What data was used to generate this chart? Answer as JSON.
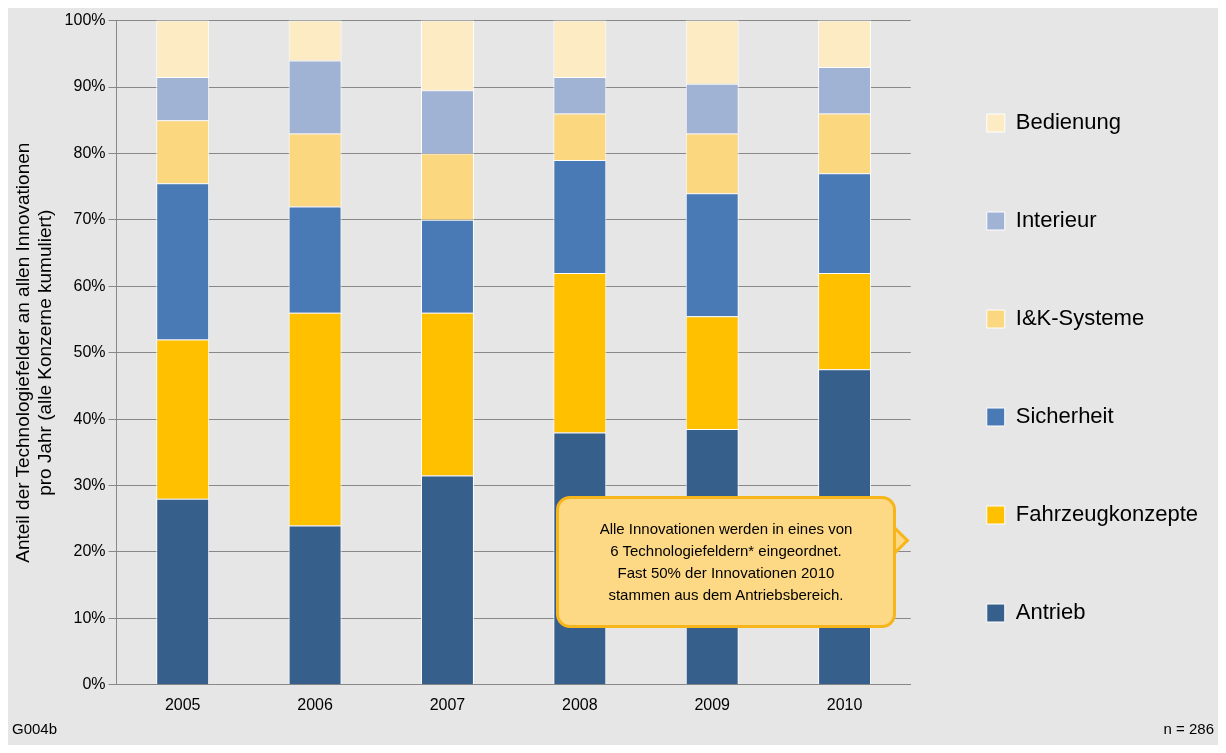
{
  "chart_data": {
    "type": "bar",
    "stacked": true,
    "categories": [
      "2005",
      "2006",
      "2007",
      "2008",
      "2009",
      "2010"
    ],
    "ylabel": "Anteil der Technologiefelder an allen Innovationen\npro Jahr (alle Konzerne kumuliert)",
    "ylim": [
      0,
      100
    ],
    "yticks": [
      {
        "value": 0,
        "label": "0%"
      },
      {
        "value": 10,
        "label": "10%"
      },
      {
        "value": 20,
        "label": "20%"
      },
      {
        "value": 30,
        "label": "30%"
      },
      {
        "value": 40,
        "label": "40%"
      },
      {
        "value": 50,
        "label": "50%"
      },
      {
        "value": 60,
        "label": "60%"
      },
      {
        "value": 70,
        "label": "70%"
      },
      {
        "value": 80,
        "label": "80%"
      },
      {
        "value": 90,
        "label": "90%"
      },
      {
        "value": 100,
        "label": "100%"
      }
    ],
    "grid": "y",
    "legend": "right",
    "series": [
      {
        "name": "Antrieb",
        "color": "#375f8c",
        "values": [
          28,
          24,
          31.5,
          38,
          38.5,
          47.5
        ]
      },
      {
        "name": "Fahrzeugkonzepte",
        "color": "#ffc000",
        "values": [
          24,
          32,
          24.5,
          24,
          17,
          14.5
        ]
      },
      {
        "name": "Sicherheit",
        "color": "#4a7ab5",
        "values": [
          23.5,
          16,
          14,
          17,
          18.5,
          15
        ]
      },
      {
        "name": "I&K-Systeme",
        "color": "#fbd87f",
        "values": [
          9.5,
          11,
          10,
          7,
          9,
          9
        ]
      },
      {
        "name": "Interieur",
        "color": "#a0b3d4",
        "values": [
          6.5,
          11,
          9.5,
          5.5,
          7.5,
          7
        ]
      },
      {
        "name": "Bedienung",
        "color": "#fdebc4",
        "values": [
          8.5,
          6,
          10.5,
          8.5,
          9.5,
          7
        ]
      }
    ],
    "annotations": [
      "Alle Innovationen werden in eines von\n6 Technologiefeldern* eingeordnet.\nFast 50% der Innovationen 2010\nstammen aus dem Antriebsbereich.",
      "G004b",
      "n = 286"
    ]
  }
}
